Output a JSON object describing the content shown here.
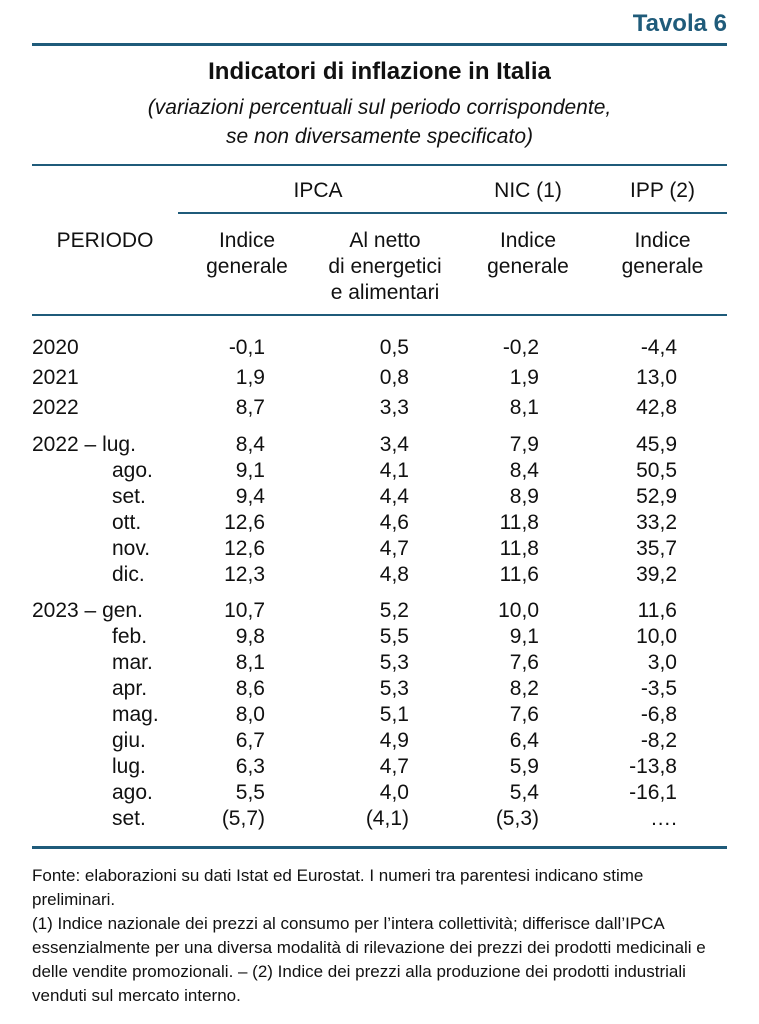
{
  "table_label": "Tavola 6",
  "title": "Indicatori di inflazione in Italia",
  "subtitle_line1": "(variazioni percentuali sul periodo corrispondente,",
  "subtitle_line2": "se non diversamente specificato)",
  "headers": {
    "periodo": "PERIODO",
    "ipca": "IPCA",
    "nic": "NIC (1)",
    "ipp": "IPP (2)",
    "ipca_generale": [
      "Indice",
      "generale"
    ],
    "ipca_netto": [
      "Al netto",
      "di energetici",
      "e alimentari"
    ],
    "nic_generale": [
      "Indice",
      "generale"
    ],
    "ipp_generale": [
      "Indice",
      "generale"
    ]
  },
  "rows": [
    {
      "period": "2020",
      "ipca_gen": "-0,1",
      "ipca_netto": "0,5",
      "nic": "-0,2",
      "ipp": "-4,4"
    },
    {
      "period": "2021",
      "ipca_gen": "1,9",
      "ipca_netto": "0,8",
      "nic": "1,9",
      "ipp": "13,0"
    },
    {
      "period": "2022",
      "ipca_gen": "8,7",
      "ipca_netto": "3,3",
      "nic": "8,1",
      "ipp": "42,8"
    },
    {
      "period": "2022 – lug.",
      "ipca_gen": "8,4",
      "ipca_netto": "3,4",
      "nic": "7,9",
      "ipp": "45,9"
    },
    {
      "period": "ago.",
      "ipca_gen": "9,1",
      "ipca_netto": "4,1",
      "nic": "8,4",
      "ipp": "50,5"
    },
    {
      "period": "set.",
      "ipca_gen": "9,4",
      "ipca_netto": "4,4",
      "nic": "8,9",
      "ipp": "52,9"
    },
    {
      "period": "ott.",
      "ipca_gen": "12,6",
      "ipca_netto": "4,6",
      "nic": "11,8",
      "ipp": "33,2"
    },
    {
      "period": "nov.",
      "ipca_gen": "12,6",
      "ipca_netto": "4,7",
      "nic": "11,8",
      "ipp": "35,7"
    },
    {
      "period": "dic.",
      "ipca_gen": "12,3",
      "ipca_netto": "4,8",
      "nic": "11,6",
      "ipp": "39,2"
    },
    {
      "period": "2023 – gen.",
      "ipca_gen": "10,7",
      "ipca_netto": "5,2",
      "nic": "10,0",
      "ipp": "11,6"
    },
    {
      "period": "feb.",
      "ipca_gen": "9,8",
      "ipca_netto": "5,5",
      "nic": "9,1",
      "ipp": "10,0"
    },
    {
      "period": "mar.",
      "ipca_gen": "8,1",
      "ipca_netto": "5,3",
      "nic": "7,6",
      "ipp": "3,0"
    },
    {
      "period": "apr.",
      "ipca_gen": "8,6",
      "ipca_netto": "5,3",
      "nic": "8,2",
      "ipp": "-3,5"
    },
    {
      "period": "mag.",
      "ipca_gen": "8,0",
      "ipca_netto": "5,1",
      "nic": "7,6",
      "ipp": "-6,8"
    },
    {
      "period": "giu.",
      "ipca_gen": "6,7",
      "ipca_netto": "4,9",
      "nic": "6,4",
      "ipp": "-8,2"
    },
    {
      "period": "lug.",
      "ipca_gen": "6,3",
      "ipca_netto": "4,7",
      "nic": "5,9",
      "ipp": "-13,8"
    },
    {
      "period": "ago.",
      "ipca_gen": "5,5",
      "ipca_netto": "4,0",
      "nic": "5,4",
      "ipp": "-16,1"
    },
    {
      "period": "set.",
      "ipca_gen": "(5,7)",
      "ipca_netto": "(4,1)",
      "nic": "(5,3)",
      "ipp": "…."
    }
  ],
  "notes": {
    "fonte": "Fonte: elaborazioni su dati Istat ed Eurostat. I numeri tra parentesi indicano stime preliminari.",
    "note1": "(1) Indice nazionale dei prezzi al consumo per l’intera collettività; differisce dall’IPCA essenzialmente per una diversa modalità di rilevazione dei prezzi dei prodotti medicinali e delle vendite promozionali. – (2) Indice dei prezzi alla produzione dei prodotti industriali venduti sul mercato interno."
  },
  "colors": {
    "accent": "#1f5b7a",
    "text": "#111111"
  }
}
